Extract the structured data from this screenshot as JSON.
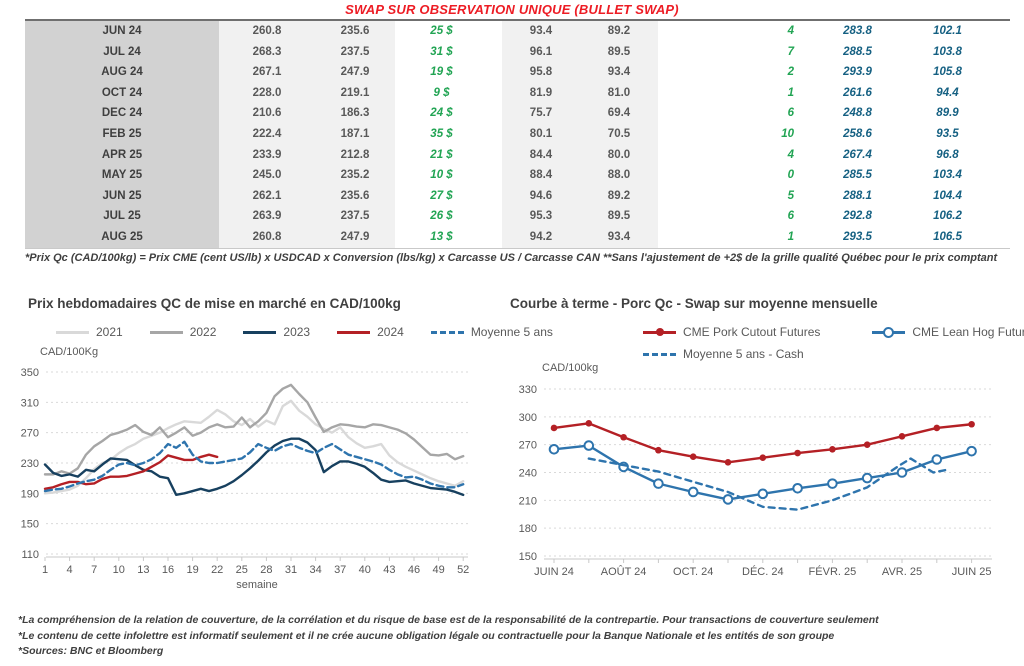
{
  "header": {
    "title": "SWAP SUR OBSERVATION UNIQUE (BULLET SWAP)"
  },
  "table": {
    "rows": [
      [
        "JUN 24",
        "260.8",
        "235.6",
        "25 $",
        "93.4",
        "89.2",
        "4",
        "283.8",
        "102.1"
      ],
      [
        "JUL 24",
        "268.3",
        "237.5",
        "31 $",
        "96.1",
        "89.5",
        "7",
        "288.5",
        "103.8"
      ],
      [
        "AUG 24",
        "267.1",
        "247.9",
        "19 $",
        "95.8",
        "93.4",
        "2",
        "293.9",
        "105.8"
      ],
      [
        "OCT 24",
        "228.0",
        "219.1",
        "9 $",
        "81.9",
        "81.0",
        "1",
        "261.6",
        "94.4"
      ],
      [
        "DEC 24",
        "210.6",
        "186.3",
        "24 $",
        "75.7",
        "69.4",
        "6",
        "248.8",
        "89.9"
      ],
      [
        "FEB 25",
        "222.4",
        "187.1",
        "35 $",
        "80.1",
        "70.5",
        "10",
        "258.6",
        "93.5"
      ],
      [
        "APR 25",
        "233.9",
        "212.8",
        "21 $",
        "84.4",
        "80.0",
        "4",
        "267.4",
        "96.8"
      ],
      [
        "MAY 25",
        "245.0",
        "235.2",
        "10 $",
        "88.4",
        "88.0",
        "0",
        "285.5",
        "103.4"
      ],
      [
        "JUN 25",
        "262.1",
        "235.6",
        "27 $",
        "94.6",
        "89.2",
        "5",
        "288.1",
        "104.4"
      ],
      [
        "JUL 25",
        "263.9",
        "237.5",
        "26 $",
        "95.3",
        "89.5",
        "6",
        "292.8",
        "106.2"
      ],
      [
        "AUG 25",
        "260.8",
        "247.9",
        "13 $",
        "94.2",
        "93.4",
        "1",
        "293.5",
        "106.5"
      ]
    ],
    "footnote": "*Prix Qc (CAD/100kg) = Prix CME (cent US/lb) x USDCAD x Conversion (lbs/kg) x Carcasse US / Carcasse CAN **Sans l'ajustement de +2$ de la grille qualité Québec pour le prix comptant"
  },
  "chart_data": [
    {
      "type": "line",
      "title": "Prix hebdomadaires QC de mise en marché en CAD/100kg",
      "ylabel": "CAD/100Kg",
      "xlabel": "semaine",
      "ylim": [
        110,
        350
      ],
      "yticks": [
        110,
        150,
        190,
        230,
        270,
        310,
        350
      ],
      "xticks": [
        1,
        4,
        7,
        10,
        13,
        16,
        19,
        22,
        25,
        28,
        31,
        34,
        37,
        40,
        43,
        46,
        49,
        52
      ],
      "x_start": 1,
      "grid": true,
      "legend_position": "top",
      "series": [
        {
          "name": "2021",
          "color": "#d9d9d9",
          "values": [
            190,
            191,
            193,
            195,
            200,
            210,
            222,
            230,
            234,
            243,
            250,
            255,
            262,
            266,
            270,
            276,
            281,
            285,
            284,
            283,
            291,
            300,
            294,
            285,
            280,
            288,
            278,
            286,
            281,
            305,
            312,
            299,
            291,
            281,
            275,
            270,
            277,
            264,
            256,
            250,
            252,
            255,
            240,
            231,
            225,
            220,
            215,
            210,
            206,
            203,
            200,
            206
          ]
        },
        {
          "name": "2022",
          "color": "#a6a6a6",
          "values": [
            215,
            215,
            219,
            216,
            223,
            241,
            252,
            259,
            267,
            270,
            274,
            280,
            271,
            267,
            277,
            264,
            270,
            277,
            266,
            270,
            277,
            281,
            277,
            278,
            290,
            277,
            285,
            296,
            318,
            328,
            333,
            321,
            310,
            290,
            271,
            277,
            281,
            280,
            278,
            277,
            281,
            280,
            277,
            274,
            269,
            261,
            251,
            241,
            240,
            242,
            235,
            239
          ]
        },
        {
          "name": "2023",
          "color": "#17405f",
          "values": [
            228,
            217,
            213,
            215,
            212,
            221,
            219,
            228,
            236,
            235,
            234,
            227,
            221,
            219,
            212,
            210,
            188,
            190,
            193,
            196,
            193,
            196,
            200,
            206,
            214,
            223,
            233,
            244,
            253,
            259,
            262,
            262,
            257,
            247,
            218,
            226,
            232,
            232,
            229,
            225,
            217,
            208,
            205,
            206,
            207,
            203,
            200,
            197,
            196,
            195,
            192,
            188
          ]
        },
        {
          "name": "2024",
          "color": "#b42025",
          "values": [
            196,
            198,
            202,
            205,
            205,
            202,
            203,
            209,
            212,
            212,
            213,
            216,
            219,
            225,
            231,
            240,
            237,
            234,
            234,
            238,
            241,
            238
          ]
        },
        {
          "name": "Moyenne 5 ans",
          "color": "#2e74ad",
          "dash": true,
          "values": [
            193,
            195,
            196,
            199,
            203,
            206,
            208,
            213,
            221,
            228,
            230,
            227,
            230,
            235,
            243,
            255,
            250,
            258,
            241,
            232,
            230,
            230,
            232,
            234,
            236,
            244,
            255,
            250,
            246,
            252,
            255,
            250,
            246,
            243,
            250,
            255,
            248,
            241,
            238,
            235,
            232,
            228,
            221,
            215,
            211,
            212,
            208,
            203,
            200,
            198,
            198,
            202
          ]
        }
      ]
    },
    {
      "type": "line",
      "title": "Courbe à terme - Porc Qc - Swap sur moyenne mensuelle",
      "ylabel": "CAD/100kg",
      "xlabel": "",
      "ylim": [
        150,
        330
      ],
      "yticks": [
        150,
        180,
        210,
        240,
        270,
        300,
        330
      ],
      "x_labels": [
        "JUIN 24",
        "AOÛT 24",
        "OCT. 24",
        "DÉC. 24",
        "FÉVR. 25",
        "AVR. 25",
        "JUIN 25"
      ],
      "grid": true,
      "legend_position": "top",
      "series": [
        {
          "name": "CME Pork Cutout Futures",
          "color": "#b42025",
          "marker": "filled",
          "values": [
            288,
            293,
            278,
            264,
            257,
            251,
            256,
            261,
            265,
            270,
            279,
            288,
            292
          ]
        },
        {
          "name": "CME Lean Hog Futures",
          "color": "#2e74ad",
          "marker": "open",
          "values": [
            265,
            269,
            246,
            228,
            219,
            211,
            217,
            223,
            228,
            234,
            240,
            254,
            263
          ]
        },
        {
          "name": "Moyenne 5 ans - Cash",
          "color": "#2e74ad",
          "dash": true,
          "points": [
            [
              1,
              255
            ],
            [
              2,
              248
            ],
            [
              3,
              241
            ],
            [
              4,
              230
            ],
            [
              5,
              219
            ],
            [
              6,
              203
            ],
            [
              7,
              200
            ],
            [
              8,
              210
            ],
            [
              9,
              224
            ],
            [
              9.9,
              247
            ],
            [
              10.25,
              255
            ],
            [
              10.9,
              240
            ],
            [
              11.3,
              243
            ]
          ]
        }
      ]
    }
  ],
  "footer": {
    "lines": [
      "*La compréhension de la relation de couverture, de la corrélation et du risque de base est de la responsabilité de la contrepartie. Pour transactions de couverture seulement",
      "*Le contenu de cette infolettre est informatif seulement et il ne crée aucune obligation légale ou contractuelle pour la Banque Nationale et les entités de son groupe",
      "*Sources: BNC et Bloomberg"
    ]
  }
}
